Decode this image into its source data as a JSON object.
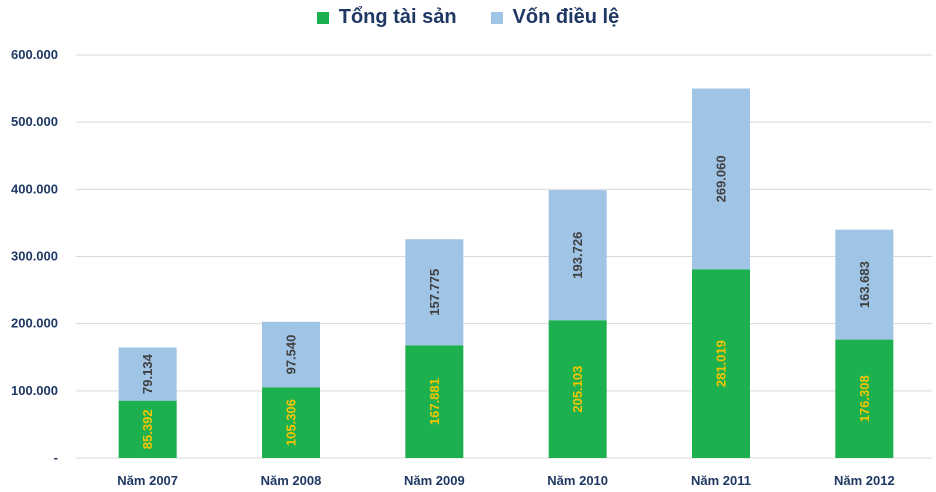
{
  "chart_data": {
    "type": "bar",
    "stacked": true,
    "categories": [
      "Năm 2007",
      "Năm 2008",
      "Năm 2009",
      "Năm 2010",
      "Năm 2011",
      "Năm 2012"
    ],
    "series": [
      {
        "name": "Tổng tài sản",
        "color": "#1db04f",
        "label_color": "#f5c400",
        "values": [
          85392,
          105306,
          167881,
          205103,
          281019,
          176308
        ],
        "labels": [
          "85.392",
          "105.306",
          "167.881",
          "205.103",
          "281.019",
          "176.308"
        ]
      },
      {
        "name": "Vốn điều lệ",
        "color": "#9fc4e6",
        "label_color": "#404040",
        "values": [
          79134,
          97540,
          157775,
          193726,
          269060,
          163683
        ],
        "labels": [
          "79.134",
          "97.540",
          "157.775",
          "193.726",
          "269.060",
          "163.683"
        ]
      }
    ],
    "ylim": [
      0,
      600000
    ],
    "yticks": [
      0,
      100000,
      200000,
      300000,
      400000,
      500000,
      600000
    ],
    "ytick_labels": [
      "-",
      "100.000",
      "200.000",
      "300.000",
      "400.000",
      "500.000",
      "600.000"
    ],
    "grid": true,
    "legend": "top-center"
  }
}
